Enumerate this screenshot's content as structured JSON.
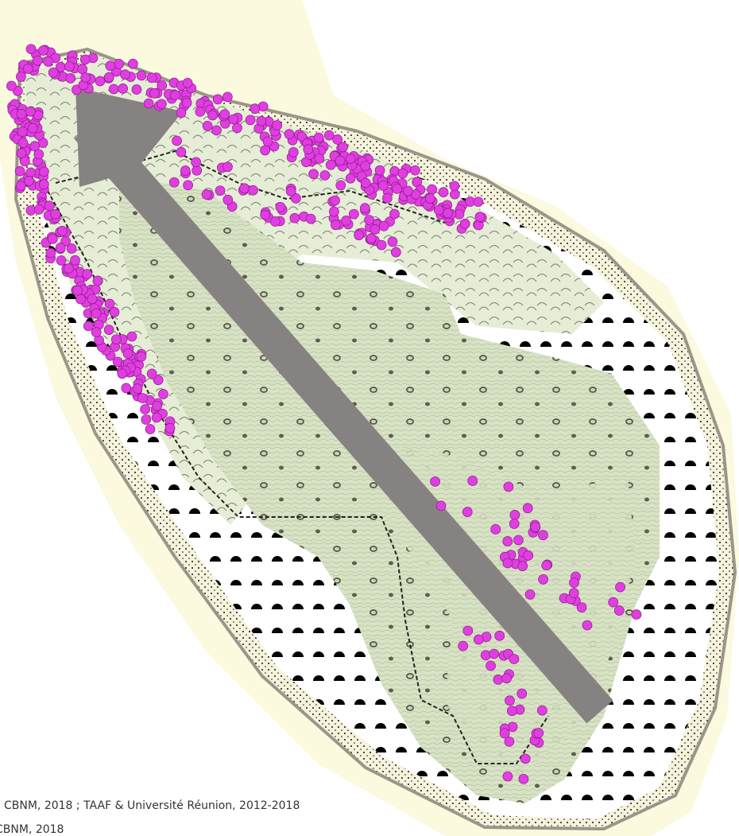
{
  "credits": {
    "line1": "CBNM, 2018 ; TAAF & Université Réunion, 2012-2018",
    "line2": "CBNM, 2018"
  }
}
